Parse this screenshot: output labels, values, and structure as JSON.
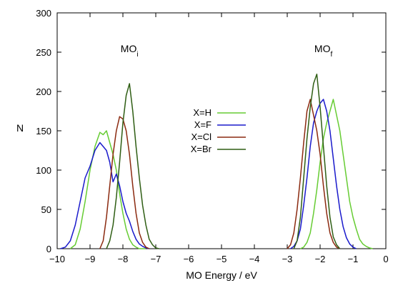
{
  "chart_data": {
    "type": "line",
    "xlabel": "MO Energy / eV",
    "ylabel": "N",
    "xlim": [
      -10,
      0
    ],
    "ylim": [
      0,
      300
    ],
    "xticks": [
      -10,
      -9,
      -8,
      -7,
      -6,
      -5,
      -4,
      -3,
      -2,
      -1,
      0
    ],
    "yticks": [
      0,
      50,
      100,
      150,
      200,
      250,
      300
    ],
    "grid": false,
    "legend_position": "center",
    "annotations": [
      {
        "base": "MO",
        "sub": "i",
        "x": -7.8,
        "y": 250
      },
      {
        "base": "MO",
        "sub": "f",
        "x": -1.9,
        "y": 250
      }
    ],
    "series": [
      {
        "name": "X=H",
        "color": "#66cc33",
        "segments": [
          {
            "x": [
              -9.6,
              -9.45,
              -9.3,
              -9.15,
              -9.0,
              -8.85,
              -8.7,
              -8.6,
              -8.5,
              -8.4,
              -8.3,
              -8.2,
              -8.1,
              -8.0,
              -7.9,
              -7.8,
              -7.7,
              -7.6,
              -7.5,
              -7.4,
              -7.3
            ],
            "y": [
              0,
              5,
              25,
              60,
              100,
              130,
              148,
              145,
              150,
              135,
              120,
              100,
              70,
              45,
              25,
              12,
              5,
              2,
              0,
              0,
              0
            ]
          },
          {
            "x": [
              -2.6,
              -2.5,
              -2.4,
              -2.3,
              -2.2,
              -2.1,
              -2.0,
              -1.9,
              -1.8,
              -1.7,
              -1.6,
              -1.5,
              -1.4,
              -1.3,
              -1.2,
              -1.1,
              -1.0,
              -0.9,
              -0.8,
              -0.7,
              -0.6,
              -0.5,
              -0.4
            ],
            "y": [
              0,
              2,
              8,
              20,
              45,
              75,
              110,
              140,
              160,
              175,
              190,
              170,
              150,
              120,
              90,
              60,
              40,
              25,
              12,
              6,
              3,
              1,
              0
            ]
          }
        ]
      },
      {
        "name": "X=F",
        "color": "#1a1acc",
        "segments": [
          {
            "x": [
              -9.9,
              -9.75,
              -9.6,
              -9.45,
              -9.3,
              -9.15,
              -9.0,
              -8.85,
              -8.7,
              -8.6,
              -8.5,
              -8.4,
              -8.3,
              -8.2,
              -8.1,
              -8.0,
              -7.9,
              -7.8,
              -7.7,
              -7.6,
              -7.5,
              -7.4,
              -7.3,
              -7.2
            ],
            "y": [
              0,
              2,
              10,
              30,
              60,
              90,
              105,
              125,
              135,
              130,
              125,
              110,
              85,
              95,
              80,
              60,
              45,
              35,
              22,
              12,
              6,
              3,
              1,
              0
            ]
          },
          {
            "x": [
              -2.9,
              -2.8,
              -2.7,
              -2.6,
              -2.5,
              -2.4,
              -2.3,
              -2.2,
              -2.1,
              -2.0,
              -1.9,
              -1.8,
              -1.7,
              -1.6,
              -1.5,
              -1.4,
              -1.3,
              -1.2,
              -1.1,
              -1.0,
              -0.9
            ],
            "y": [
              0,
              3,
              10,
              25,
              55,
              90,
              130,
              160,
              175,
              185,
              190,
              175,
              150,
              115,
              80,
              50,
              28,
              14,
              6,
              2,
              0
            ]
          }
        ]
      },
      {
        "name": "X=Cl",
        "color": "#8b2a10",
        "segments": [
          {
            "x": [
              -8.7,
              -8.6,
              -8.5,
              -8.4,
              -8.3,
              -8.2,
              -8.1,
              -8.0,
              -7.9,
              -7.8,
              -7.7,
              -7.6,
              -7.5,
              -7.4,
              -7.3,
              -7.2
            ],
            "y": [
              0,
              10,
              40,
              80,
              120,
              150,
              168,
              165,
              150,
              120,
              80,
              45,
              20,
              8,
              2,
              0
            ]
          },
          {
            "x": [
              -3.0,
              -2.9,
              -2.8,
              -2.7,
              -2.6,
              -2.5,
              -2.4,
              -2.3,
              -2.2,
              -2.1,
              -2.0,
              -1.9,
              -1.8,
              -1.7,
              -1.6,
              -1.5,
              -1.4
            ],
            "y": [
              0,
              5,
              20,
              50,
              90,
              135,
              175,
              190,
              170,
              150,
              120,
              80,
              45,
              20,
              8,
              2,
              0
            ]
          }
        ]
      },
      {
        "name": "X=Br",
        "color": "#2f5e14",
        "segments": [
          {
            "x": [
              -8.5,
              -8.4,
              -8.3,
              -8.2,
              -8.1,
              -8.0,
              -7.9,
              -7.8,
              -7.7,
              -7.6,
              -7.5,
              -7.4,
              -7.3,
              -7.2,
              -7.1,
              -7.0,
              -6.9
            ],
            "y": [
              0,
              10,
              30,
              65,
              110,
              160,
              195,
              210,
              175,
              130,
              90,
              55,
              30,
              12,
              5,
              1,
              0
            ]
          },
          {
            "x": [
              -2.8,
              -2.7,
              -2.6,
              -2.5,
              -2.4,
              -2.3,
              -2.2,
              -2.1,
              -2.0,
              -1.9,
              -1.8,
              -1.7,
              -1.6,
              -1.5,
              -1.4
            ],
            "y": [
              0,
              10,
              40,
              90,
              140,
              180,
              210,
              222,
              180,
              130,
              80,
              40,
              15,
              5,
              0
            ]
          }
        ]
      }
    ]
  }
}
